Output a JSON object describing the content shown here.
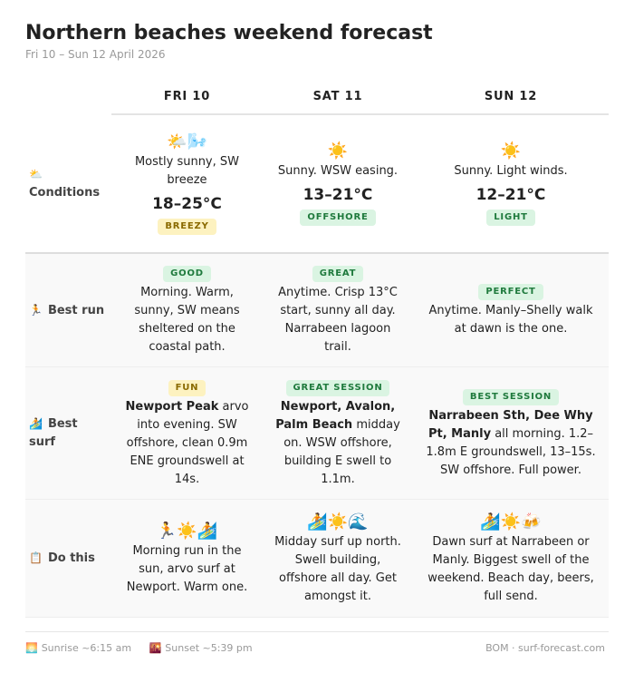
{
  "header": {
    "title": "Northern beaches weekend forecast",
    "subtitle": "Fri 10 – Sun 12 April 2026"
  },
  "days": [
    "FRI 10",
    "SAT 11",
    "SUN 12"
  ],
  "rows": [
    {
      "icon": "⛅",
      "label": "Conditions",
      "cells": [
        {
          "icon": "🌤️🌬️",
          "text": "Mostly sunny, SW breeze",
          "temp": "18–25°C",
          "badge": "BREEZY",
          "tone": "yellow"
        },
        {
          "icon": "☀️",
          "text": "Sunny. WSW easing.",
          "temp": "13–21°C",
          "badge": "OFFSHORE",
          "tone": "green"
        },
        {
          "icon": "☀️",
          "text": "Sunny. Light winds.",
          "temp": "12–21°C",
          "badge": "LIGHT",
          "tone": "green"
        }
      ]
    },
    {
      "icon": "🏃",
      "label": "Best run",
      "cells": [
        {
          "badge": "GOOD",
          "tone": "green",
          "text": "Morning. Warm, sunny, SW means sheltered on the coastal path."
        },
        {
          "badge": "GREAT",
          "tone": "green",
          "text": "Anytime. Crisp 13°C start, sunny all day. Narrabeen lagoon trail."
        },
        {
          "badge": "PERFECT",
          "tone": "green",
          "text": "Anytime. Manly–Shelly walk at dawn is the one."
        }
      ]
    },
    {
      "icon": "🏄",
      "label": "Best surf",
      "cells": [
        {
          "badge": "FUN",
          "tone": "yellow",
          "lead": "Newport Peak",
          "text": " arvo into evening. SW offshore, clean 0.9m ENE groundswell at 14s."
        },
        {
          "badge": "GREAT SESSION",
          "tone": "green",
          "lead": "Newport, Avalon, Palm Beach",
          "text": " midday on. WSW offshore, building E swell to 1.1m."
        },
        {
          "badge": "BEST SESSION",
          "tone": "green",
          "lead": "Narrabeen Sth, Dee Why Pt, Manly",
          "text": " all morning. 1.2–1.8m E groundswell, 13–15s. SW offshore. Full power."
        }
      ]
    },
    {
      "icon": "📋",
      "label": "Do this",
      "cells": [
        {
          "icon": "🏃☀️🏄",
          "text": "Morning run in the sun, arvo surf at Newport. Warm one."
        },
        {
          "icon": "🏄☀️🌊",
          "text": "Midday surf up north. Swell building, offshore all day. Get amongst it."
        },
        {
          "icon": "🏄☀️🍻",
          "text": "Dawn surf at Narrabeen or Manly. Biggest swell of the weekend. Beach day, beers, full send."
        }
      ]
    }
  ],
  "footer": {
    "sunrise_icon": "🌅",
    "sunrise": "Sunrise ~6:15 am",
    "sunset_icon": "🌇",
    "sunset": "Sunset ~5:39 pm",
    "source": "BOM · surf-forecast.com"
  }
}
